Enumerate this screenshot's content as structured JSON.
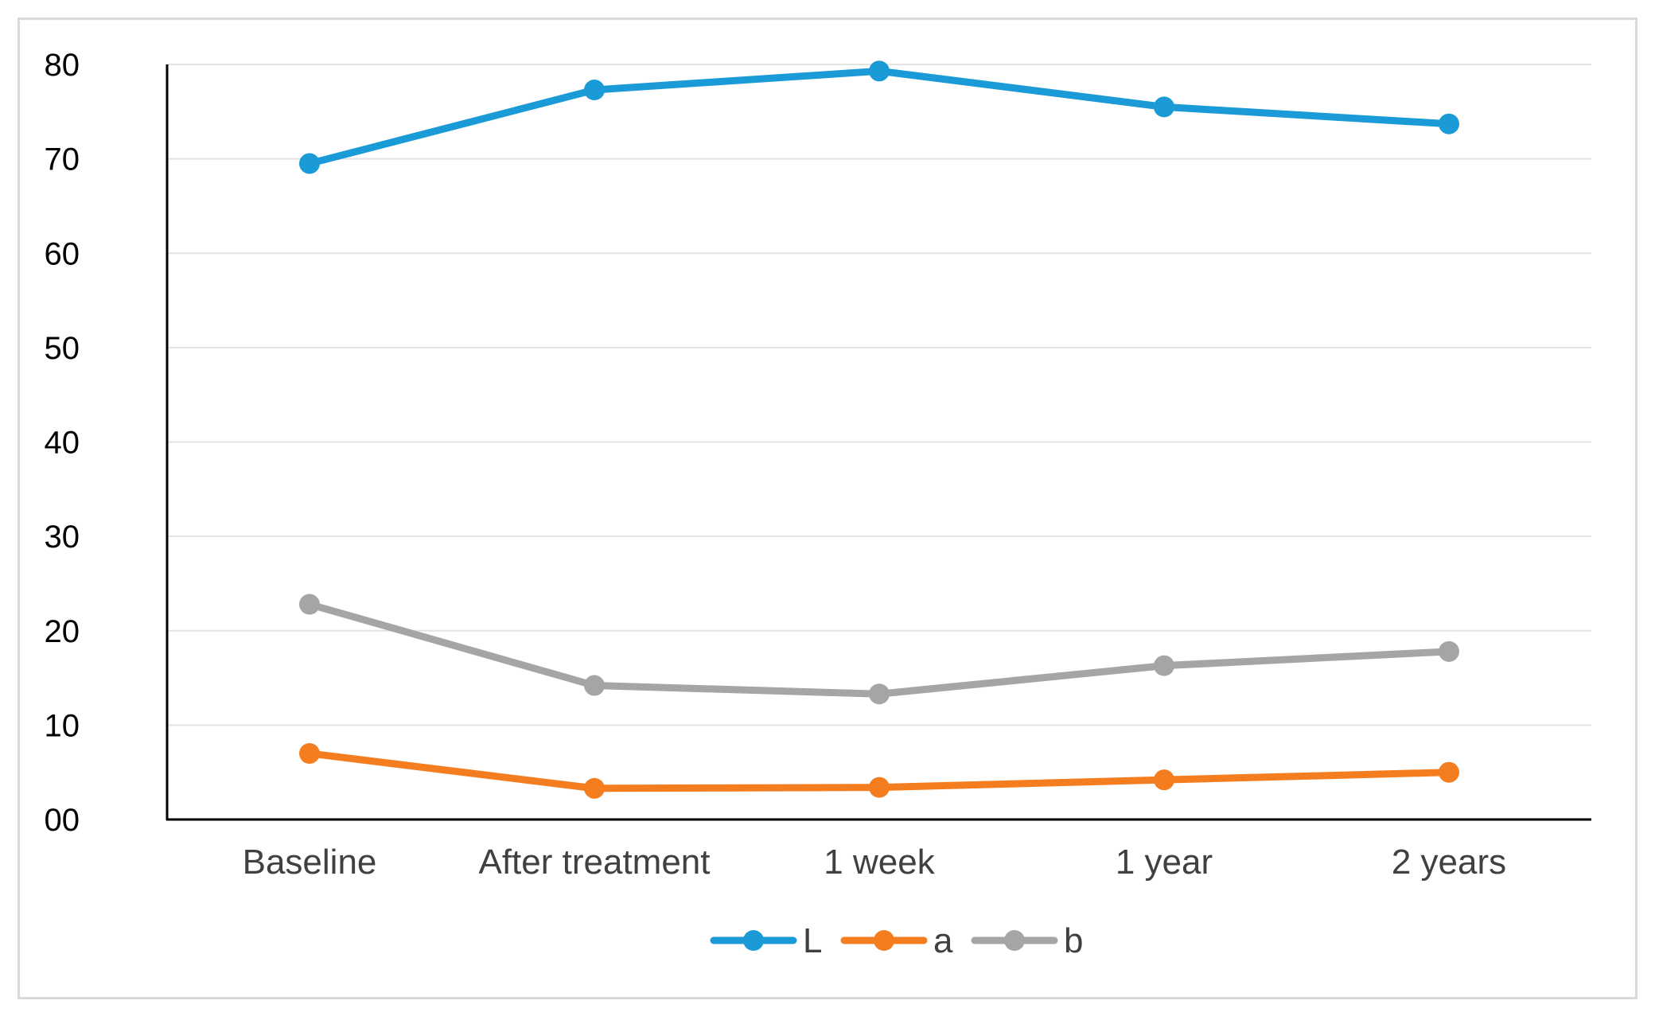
{
  "chart_data": {
    "type": "line",
    "title": "",
    "xlabel": "",
    "ylabel": "",
    "categories": [
      "Baseline",
      "After treatment",
      "1 week",
      "1 year",
      "2 years"
    ],
    "y_ticks": [
      "00",
      "10",
      "20",
      "30",
      "40",
      "50",
      "60",
      "70",
      "80"
    ],
    "ylim": [
      0,
      80
    ],
    "grid": true,
    "legend_position": "bottom",
    "series": [
      {
        "name": "L",
        "color": "#1a9ad6",
        "values": [
          69.5,
          77.3,
          79.3,
          75.5,
          73.7
        ]
      },
      {
        "name": "a",
        "color": "#f47d20",
        "values": [
          7.0,
          3.3,
          3.4,
          4.2,
          5.0
        ]
      },
      {
        "name": "b",
        "color": "#a5a5a5",
        "values": [
          22.8,
          14.2,
          13.3,
          16.3,
          17.8
        ]
      }
    ]
  }
}
